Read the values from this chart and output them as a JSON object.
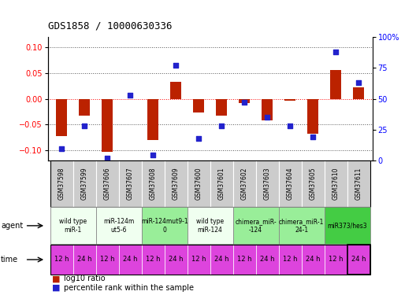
{
  "title": "GDS1858 / 10000630336",
  "samples": [
    "GSM37598",
    "GSM37599",
    "GSM37606",
    "GSM37607",
    "GSM37608",
    "GSM37609",
    "GSM37600",
    "GSM37601",
    "GSM37602",
    "GSM37603",
    "GSM37604",
    "GSM37605",
    "GSM37610",
    "GSM37611"
  ],
  "log10_ratio": [
    -0.072,
    -0.032,
    -0.103,
    -0.001,
    -0.08,
    0.033,
    -0.027,
    -0.033,
    -0.008,
    -0.042,
    -0.003,
    -0.068,
    0.056,
    0.022
  ],
  "percentile": [
    10,
    28,
    2,
    53,
    5,
    77,
    18,
    28,
    47,
    35,
    28,
    19,
    88,
    63
  ],
  "ylim_left": [
    -0.12,
    0.12
  ],
  "ylim_right": [
    0,
    100
  ],
  "yticks_left": [
    -0.1,
    -0.05,
    0.0,
    0.05,
    0.1
  ],
  "yticks_right": [
    0,
    25,
    50,
    75,
    100
  ],
  "bar_color": "#bb2200",
  "dot_color": "#2222cc",
  "agent_groups": [
    {
      "label": "wild type\nmiR-1",
      "cols": [
        0,
        1
      ],
      "color": "#f0fff0"
    },
    {
      "label": "miR-124m\nut5-6",
      "cols": [
        2,
        3
      ],
      "color": "#f0fff0"
    },
    {
      "label": "miR-124mut9-1\n0",
      "cols": [
        4,
        5
      ],
      "color": "#99ee99"
    },
    {
      "label": "wild type\nmiR-124",
      "cols": [
        6,
        7
      ],
      "color": "#f0fff0"
    },
    {
      "label": "chimera_miR-\n-124",
      "cols": [
        8,
        9
      ],
      "color": "#99ee99"
    },
    {
      "label": "chimera_miR-1\n24-1",
      "cols": [
        10,
        11
      ],
      "color": "#99ee99"
    },
    {
      "label": "miR373/hes3",
      "cols": [
        12,
        13
      ],
      "color": "#44cc44"
    }
  ],
  "time_labels": [
    "12 h",
    "24 h",
    "12 h",
    "24 h",
    "12 h",
    "24 h",
    "12 h",
    "24 h",
    "12 h",
    "24 h",
    "12 h",
    "24 h",
    "12 h",
    "24 h"
  ],
  "time_color": "#dd44dd",
  "grid_color": "#555555",
  "bg_color": "#ffffff",
  "sample_bg": "#cccccc"
}
